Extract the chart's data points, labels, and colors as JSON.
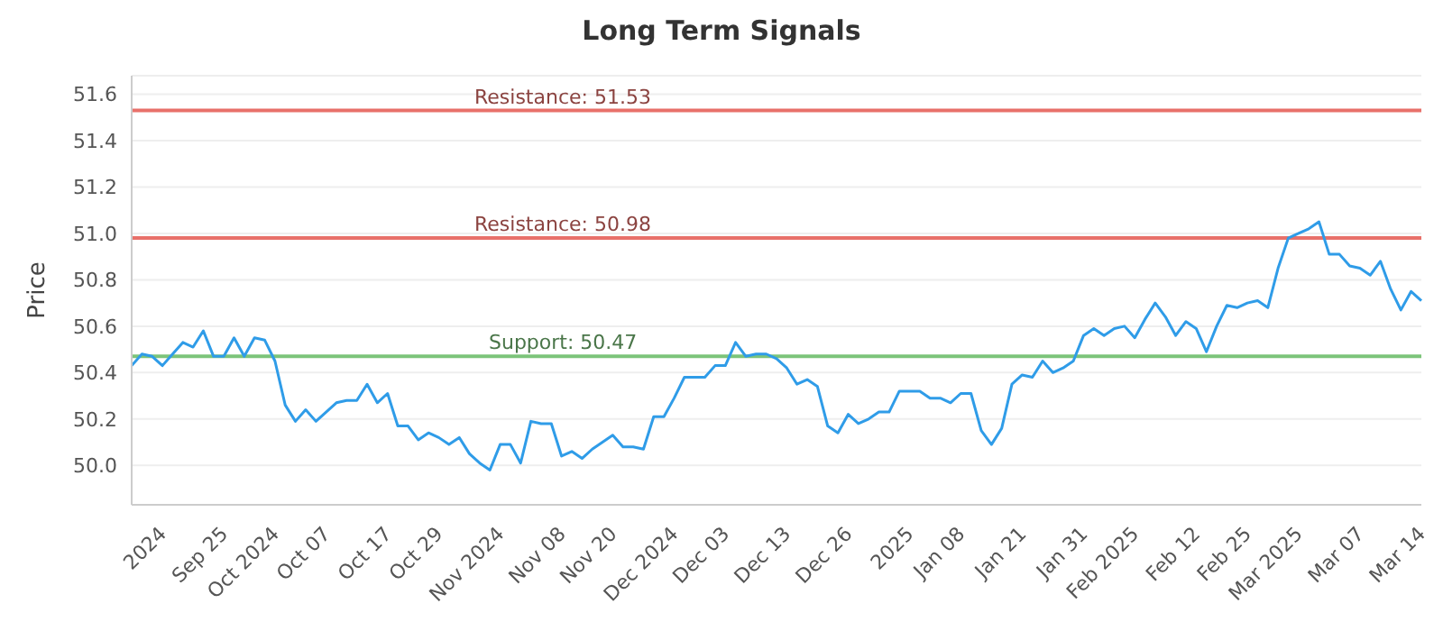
{
  "chart_data": {
    "type": "line",
    "title": "Long Term Signals",
    "ylabel": "Price",
    "categories": [
      null,
      null,
      null,
      "2024",
      null,
      null,
      null,
      null,
      null,
      "Sep 25",
      null,
      null,
      null,
      null,
      "Oct 2024",
      null,
      null,
      null,
      null,
      "Oct 07",
      null,
      null,
      null,
      null,
      null,
      "Oct 17",
      null,
      null,
      null,
      null,
      "Oct 29",
      null,
      null,
      null,
      null,
      null,
      "Nov 2024",
      null,
      null,
      null,
      null,
      null,
      "Nov 08",
      null,
      null,
      null,
      null,
      "Nov 20",
      null,
      null,
      null,
      null,
      null,
      "Dec 2024",
      null,
      null,
      null,
      null,
      "Dec 03",
      null,
      null,
      null,
      null,
      null,
      "Dec 13",
      null,
      null,
      null,
      null,
      null,
      "Dec 26",
      null,
      null,
      null,
      null,
      null,
      "2025",
      null,
      null,
      null,
      null,
      "Jan 08",
      null,
      null,
      null,
      null,
      null,
      "Jan 21",
      null,
      null,
      null,
      null,
      null,
      "Jan 31",
      null,
      null,
      null,
      null,
      "Feb 2025",
      null,
      null,
      null,
      null,
      null,
      "Feb 12",
      null,
      null,
      null,
      null,
      "Feb 25",
      null,
      null,
      null,
      null,
      "Mar 2025",
      null,
      null,
      null,
      null,
      null,
      "Mar 07",
      null,
      null,
      null,
      null,
      null,
      "Mar 14"
    ],
    "series": [
      {
        "color": "#2f9ce8",
        "values": [
          50.43,
          50.48,
          50.47,
          50.43,
          50.48,
          50.53,
          50.51,
          50.58,
          50.47,
          50.47,
          50.55,
          50.47,
          50.55,
          50.54,
          50.45,
          50.26,
          50.19,
          50.24,
          50.19,
          50.23,
          50.27,
          50.28,
          50.28,
          50.35,
          50.27,
          50.31,
          50.17,
          50.17,
          50.11,
          50.14,
          50.12,
          50.09,
          50.12,
          50.05,
          50.01,
          49.98,
          50.09,
          50.09,
          50.01,
          50.19,
          50.18,
          50.18,
          50.04,
          50.06,
          50.03,
          50.07,
          50.1,
          50.13,
          50.08,
          50.08,
          50.07,
          50.21,
          50.21,
          50.29,
          50.38,
          50.38,
          50.38,
          50.43,
          50.43,
          50.53,
          50.47,
          50.48,
          50.48,
          50.46,
          50.42,
          50.35,
          50.37,
          50.34,
          50.17,
          50.14,
          50.22,
          50.18,
          50.2,
          50.23,
          50.23,
          50.32,
          50.32,
          50.32,
          50.29,
          50.29,
          50.27,
          50.31,
          50.31,
          50.15,
          50.09,
          50.16,
          50.35,
          50.39,
          50.38,
          50.45,
          50.4,
          50.42,
          50.45,
          50.56,
          50.59,
          50.56,
          50.59,
          50.6,
          50.55,
          50.63,
          50.7,
          50.64,
          50.56,
          50.62,
          50.59,
          50.49,
          50.6,
          50.69,
          50.68,
          50.7,
          50.71,
          50.68,
          50.85,
          50.98,
          51.0,
          51.02,
          51.05,
          50.91,
          50.91,
          50.86,
          50.85,
          50.82,
          50.88,
          50.76,
          50.67,
          50.75,
          50.71
        ]
      }
    ],
    "ylim": [
      49.83,
      51.68
    ],
    "yticks": [
      {
        "value": 50,
        "label": "50.0"
      },
      {
        "value": 50.2,
        "label": "50.2"
      },
      {
        "value": 50.4,
        "label": "50.4"
      },
      {
        "value": 50.6,
        "label": "50.6"
      },
      {
        "value": 50.8,
        "label": "50.8"
      },
      {
        "value": 51,
        "label": "51.0"
      },
      {
        "value": 51.2,
        "label": "51.2"
      },
      {
        "value": 51.4,
        "label": "51.4"
      },
      {
        "value": 51.6,
        "label": "51.6"
      }
    ],
    "ref_lines": [
      {
        "axis": "y",
        "value": 51.53,
        "label": "Resistance: 51.53",
        "color": "#e8706a"
      },
      {
        "axis": "y",
        "value": 50.98,
        "label": "Resistance: 50.98",
        "color": "#e8706a"
      },
      {
        "axis": "y",
        "value": 50.47,
        "label": "Support: 50.47",
        "color": "#7cc47a"
      }
    ],
    "grid": "y",
    "marker": "none",
    "line_style": "solid"
  }
}
